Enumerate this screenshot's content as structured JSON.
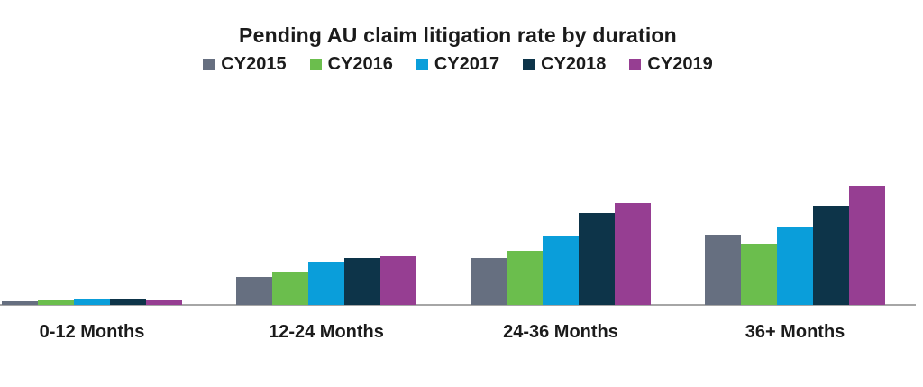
{
  "chart_data": {
    "type": "bar",
    "title": "Pending AU claim litigation rate by duration",
    "categories": [
      "0-12 Months",
      "12-24 Months",
      "24-36 Months",
      "36+ Months"
    ],
    "series": [
      {
        "name": "CY2015",
        "color": "#666F80",
        "values": [
          0.4,
          3.1,
          5.2,
          7.8
        ]
      },
      {
        "name": "CY2016",
        "color": "#6BBE4D",
        "values": [
          0.5,
          3.6,
          6.0,
          6.7
        ]
      },
      {
        "name": "CY2017",
        "color": "#0A9EDA",
        "values": [
          0.6,
          4.8,
          7.6,
          8.6
        ]
      },
      {
        "name": "CY2018",
        "color": "#0D3449",
        "values": [
          0.6,
          5.2,
          10.2,
          11.0
        ]
      },
      {
        "name": "CY2019",
        "color": "#963E92",
        "values": [
          0.5,
          5.4,
          11.3,
          13.2
        ]
      }
    ],
    "legend_position": "top",
    "legend_labels": [
      "CY2015",
      "CY2016",
      "CY2017",
      "CY2018",
      "CY2019"
    ],
    "xlabel": "",
    "ylabel": "",
    "ylim": [
      0,
      13.5
    ],
    "grid": false,
    "y_axis_visible": false,
    "note": "No y-axis or data labels shown; values estimated from relative bar heights"
  },
  "colors": {
    "background": "#FFFFFF",
    "axis_line": "#A6A6A6",
    "text": "#1B1B1B"
  }
}
